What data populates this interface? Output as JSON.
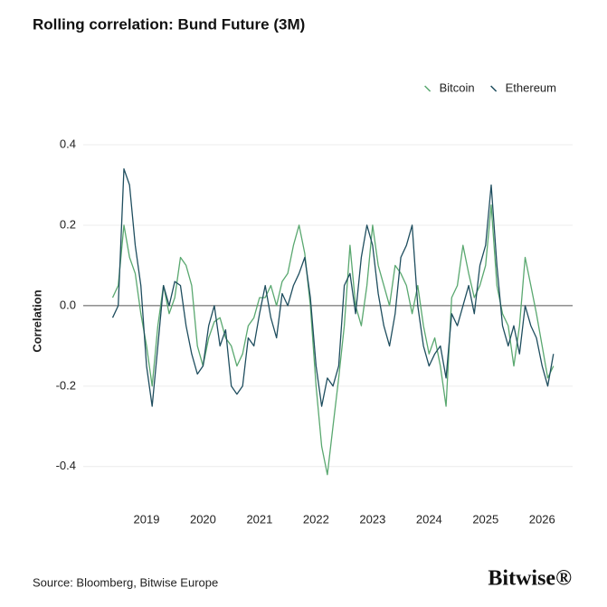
{
  "chart_data": {
    "type": "line",
    "title": "Rolling correlation: Bund Future (3M)",
    "y_label": "Correlation",
    "source": "Source: Bloomberg, Bitwise Europe",
    "logo": "Bitwise®",
    "legend": "top-right",
    "grid": true,
    "xlim": [
      2017.88,
      2026.54
    ],
    "xticks": [
      2019,
      2020,
      2021,
      2022,
      2023,
      2024,
      2025,
      2026
    ],
    "ylim": [
      -0.45,
      0.4
    ],
    "yticks": [
      0.4,
      0.2,
      {
        "value": 0,
        "label": "0.0"
      },
      -0.2,
      -0.4
    ],
    "x": [
      2018.4,
      2018.5,
      2018.6,
      2018.7,
      2018.8,
      2018.9,
      2019.0,
      2019.1,
      2019.2,
      2019.3,
      2019.4,
      2019.5,
      2019.6,
      2019.7,
      2019.8,
      2019.9,
      2020.0,
      2020.1,
      2020.2,
      2020.3,
      2020.4,
      2020.5,
      2020.6,
      2020.7,
      2020.8,
      2020.9,
      2021.0,
      2021.1,
      2021.2,
      2021.3,
      2021.4,
      2021.5,
      2021.6,
      2021.7,
      2021.8,
      2021.9,
      2022.0,
      2022.1,
      2022.2,
      2022.3,
      2022.4,
      2022.5,
      2022.6,
      2022.7,
      2022.8,
      2022.9,
      2023.0,
      2023.1,
      2023.2,
      2023.3,
      2023.4,
      2023.5,
      2023.6,
      2023.7,
      2023.8,
      2023.9,
      2024.0,
      2024.1,
      2024.2,
      2024.3,
      2024.4,
      2024.5,
      2024.6,
      2024.7,
      2024.8,
      2024.9,
      2025.0,
      2025.1,
      2025.2,
      2025.3,
      2025.4,
      2025.5,
      2025.6,
      2025.7,
      2025.8,
      2025.9,
      2026.0,
      2026.1,
      2026.2
    ],
    "series": [
      {
        "name": "Bitcoin",
        "color": "#5aa870",
        "values": [
          0.02,
          0.05,
          0.2,
          0.12,
          0.08,
          -0.02,
          -0.1,
          -0.2,
          -0.05,
          0.05,
          -0.02,
          0.02,
          0.12,
          0.1,
          0.05,
          -0.1,
          -0.15,
          -0.08,
          -0.04,
          -0.03,
          -0.08,
          -0.1,
          -0.15,
          -0.12,
          -0.05,
          -0.03,
          0.02,
          0.02,
          0.05,
          0.0,
          0.06,
          0.08,
          0.15,
          0.2,
          0.13,
          0.0,
          -0.2,
          -0.35,
          -0.42,
          -0.3,
          -0.18,
          -0.05,
          0.15,
          0.0,
          -0.05,
          0.05,
          0.2,
          0.1,
          0.05,
          0.0,
          0.1,
          0.08,
          0.05,
          -0.02,
          0.05,
          -0.05,
          -0.12,
          -0.08,
          -0.15,
          -0.25,
          0.02,
          0.05,
          0.15,
          0.08,
          0.02,
          0.05,
          0.1,
          0.25,
          0.05,
          -0.02,
          -0.05,
          -0.15,
          -0.05,
          0.12,
          0.05,
          -0.02,
          -0.1,
          -0.18,
          -0.15
        ]
      },
      {
        "name": "Ethereum",
        "color": "#1f4e5f",
        "values": [
          -0.03,
          0.0,
          0.34,
          0.3,
          0.15,
          0.05,
          -0.15,
          -0.25,
          -0.1,
          0.05,
          0.0,
          0.06,
          0.05,
          -0.05,
          -0.12,
          -0.17,
          -0.15,
          -0.05,
          0.0,
          -0.1,
          -0.06,
          -0.2,
          -0.22,
          -0.2,
          -0.08,
          -0.1,
          -0.02,
          0.05,
          -0.03,
          -0.08,
          0.03,
          0.0,
          0.05,
          0.08,
          0.12,
          0.02,
          -0.15,
          -0.25,
          -0.18,
          -0.2,
          -0.15,
          0.05,
          0.08,
          -0.02,
          0.12,
          0.2,
          0.15,
          0.03,
          -0.05,
          -0.1,
          -0.02,
          0.12,
          0.15,
          0.2,
          0.0,
          -0.1,
          -0.15,
          -0.12,
          -0.1,
          -0.18,
          -0.02,
          -0.05,
          0.0,
          0.05,
          -0.02,
          0.1,
          0.15,
          0.3,
          0.1,
          -0.05,
          -0.1,
          -0.05,
          -0.12,
          0.0,
          -0.05,
          -0.08,
          -0.15,
          -0.2,
          -0.12
        ]
      }
    ]
  }
}
